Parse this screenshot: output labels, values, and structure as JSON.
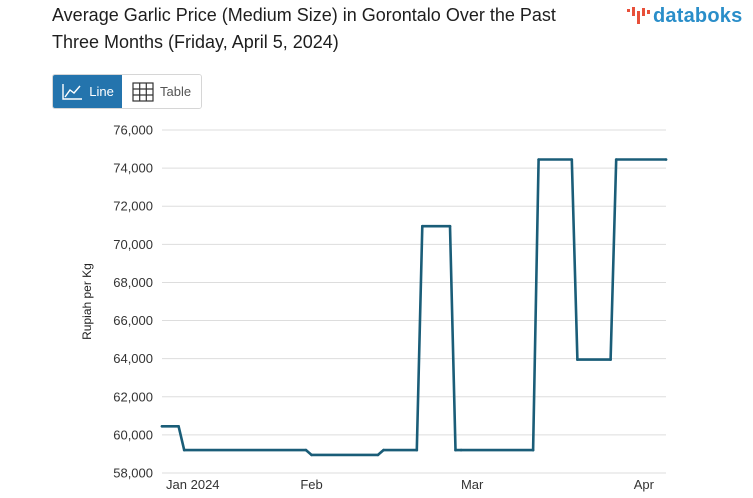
{
  "header": {
    "title_line1": "Average Garlic Price (Medium Size) in Gorontalo Over the Past",
    "title_line2": "Three Months (Friday, April 5, 2024)",
    "brand": "databoks"
  },
  "view_toggle": {
    "line_label": "Line",
    "table_label": "Table",
    "active": "Line"
  },
  "colors": {
    "series": "#1a5d78",
    "brand": "#2a8ec9",
    "brand_mark": "#e8503a",
    "active_button": "#2474ad",
    "grid": "#dddddd"
  },
  "chart_data": {
    "type": "line",
    "title": "Average Garlic Price (Medium Size) in Gorontalo Over the Past Three Months (Friday, April 5, 2024)",
    "xlabel": "",
    "ylabel": "Rupiah per Kg",
    "x_type": "date",
    "xlim": [
      "2024-01-05",
      "2024-04-05"
    ],
    "ylim": [
      58000,
      76000
    ],
    "y_ticks": [
      58000,
      60000,
      62000,
      64000,
      66000,
      68000,
      70000,
      72000,
      74000,
      76000
    ],
    "y_tick_labels": [
      "58,000",
      "60,000",
      "62,000",
      "64,000",
      "66,000",
      "68,000",
      "70,000",
      "72,000",
      "74,000",
      "76,000"
    ],
    "x_ticks": [
      "2024-01-01",
      "2024-02-01",
      "2024-03-01",
      "2024-04-01"
    ],
    "x_tick_labels": [
      "Jan 2024",
      "Feb",
      "Mar",
      "Apr"
    ],
    "grid": "horizontal",
    "legend": "none",
    "series": [
      {
        "name": "",
        "x": [
          "2024-01-05",
          "2024-01-08",
          "2024-01-09",
          "2024-01-31",
          "2024-02-01",
          "2024-02-13",
          "2024-02-14",
          "2024-02-20",
          "2024-02-21",
          "2024-02-26",
          "2024-02-27",
          "2024-02-28",
          "2024-03-12",
          "2024-03-13",
          "2024-03-19",
          "2024-03-20",
          "2024-03-26",
          "2024-03-27",
          "2024-04-05"
        ],
        "values": [
          60450,
          60450,
          59200,
          59200,
          58950,
          58950,
          59200,
          59200,
          70950,
          70950,
          59200,
          59200,
          59200,
          74450,
          74450,
          63950,
          63950,
          74450,
          74450
        ]
      }
    ]
  }
}
